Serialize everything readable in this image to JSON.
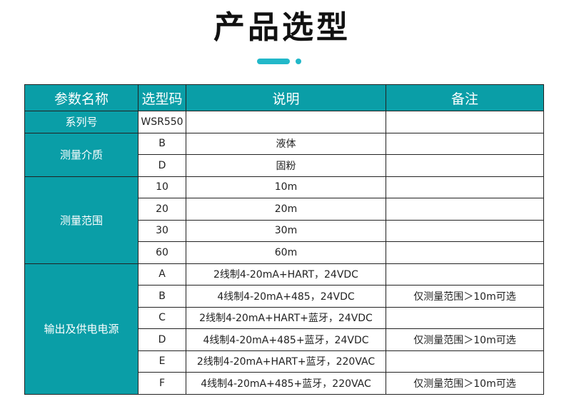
{
  "title": "产品选型",
  "colors": {
    "accent": "#0a9ea7"
  },
  "headers": [
    "参数名称",
    "选型码",
    "说明",
    "备注"
  ],
  "series": {
    "name": "系列号",
    "code": "WSR550",
    "desc": "",
    "note": ""
  },
  "medium": {
    "name": "测量介质",
    "rows": [
      {
        "code": "B",
        "desc": "液体",
        "note": ""
      },
      {
        "code": "D",
        "desc": "固粉",
        "note": ""
      }
    ]
  },
  "range": {
    "name": "测量范围",
    "rows": [
      {
        "code": "10",
        "desc": "10m",
        "note": ""
      },
      {
        "code": "20",
        "desc": "20m",
        "note": ""
      },
      {
        "code": "30",
        "desc": "30m",
        "note": ""
      },
      {
        "code": "60",
        "desc": "60m",
        "note": ""
      }
    ]
  },
  "output": {
    "name": "输出及供电电源",
    "rows": [
      {
        "code": "A",
        "desc": "2线制4-20mA+HART，24VDC",
        "note": ""
      },
      {
        "code": "B",
        "desc": "4线制4-20mA+485，24VDC",
        "note": "仅测量范围＞10m可选"
      },
      {
        "code": "C",
        "desc": "2线制4-20mA+HART+蓝牙，24VDC",
        "note": ""
      },
      {
        "code": "D",
        "desc": "4线制4-20mA+485+蓝牙，24VDC",
        "note": "仅测量范围＞10m可选"
      },
      {
        "code": "E",
        "desc": "2线制4-20mA+HART+蓝牙，220VAC",
        "note": ""
      },
      {
        "code": "F",
        "desc": "4线制4-20mA+485+蓝牙，220VAC",
        "note": "仅测量范围＞10m可选"
      }
    ]
  }
}
